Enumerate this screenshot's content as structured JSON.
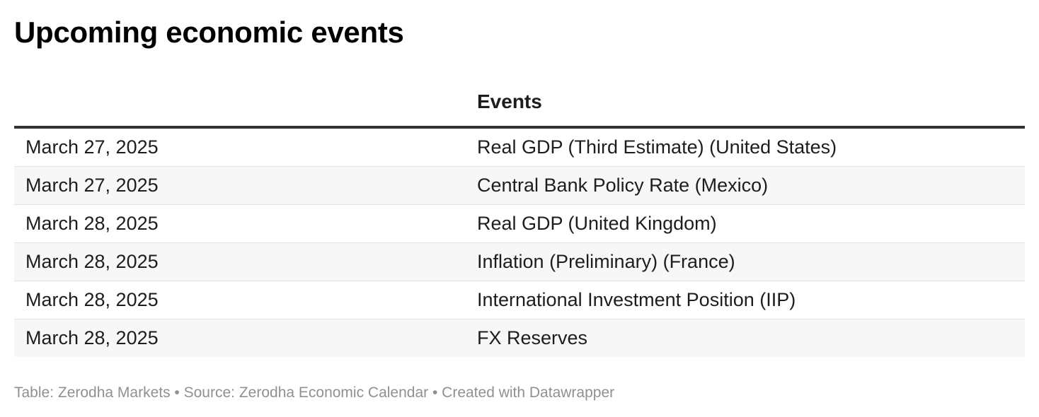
{
  "chart_data": {
    "type": "table",
    "title": "Upcoming economic events",
    "columns": [
      "",
      "Events"
    ],
    "rows": [
      {
        "date": "March 27, 2025",
        "event": "Real GDP (Third Estimate) (United States)"
      },
      {
        "date": "March 27, 2025",
        "event": "Central Bank Policy Rate (Mexico)"
      },
      {
        "date": "March 28, 2025",
        "event": "Real GDP (United Kingdom)"
      },
      {
        "date": "March 28, 2025",
        "event": "Inflation (Preliminary) (France)"
      },
      {
        "date": "March 28, 2025",
        "event": "International Investment Position (IIP)"
      },
      {
        "date": "March 28, 2025",
        "event": "FX Reserves"
      }
    ],
    "footer": "Table: Zerodha Markets • Source: Zerodha Economic Calendar • Created with Datawrapper"
  },
  "colors": {
    "header_rule": "#333333",
    "alt_row_background": "#f7f7f7",
    "row_divider": "#e2e2e2",
    "footer_text": "#909090"
  }
}
